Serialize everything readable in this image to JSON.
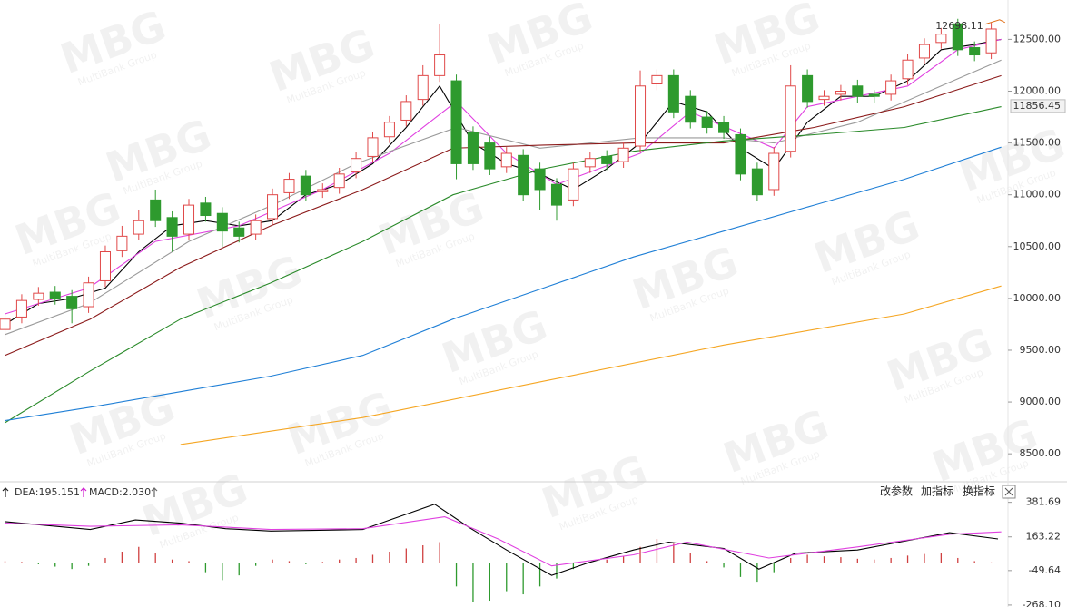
{
  "chart_data": [
    {
      "type": "candlestick",
      "x": [
        0,
        1,
        2,
        3,
        4,
        5,
        6,
        7,
        8,
        9,
        10,
        11,
        12,
        13,
        14,
        15,
        16,
        17,
        18,
        19,
        20,
        21,
        22,
        23,
        24,
        25,
        26,
        27,
        28,
        29,
        30,
        31,
        32,
        33,
        34,
        35,
        36,
        37,
        38,
        39,
        40,
        41,
        42,
        43,
        44,
        45,
        46,
        47,
        48,
        49,
        50,
        51,
        52,
        53,
        54,
        55,
        56,
        57,
        58,
        59
      ],
      "open": [
        9700,
        9820,
        9990,
        10060,
        10020,
        9920,
        10170,
        10460,
        10620,
        10950,
        10780,
        10620,
        10920,
        10820,
        10680,
        10620,
        10770,
        11020,
        11180,
        11030,
        11070,
        11220,
        11370,
        11560,
        11720,
        11920,
        12150,
        12100,
        11600,
        11500,
        11270,
        11380,
        11250,
        11100,
        10950,
        11270,
        11370,
        11320,
        11470,
        12070,
        12150,
        11950,
        11750,
        11700,
        11580,
        11250,
        11050,
        11420,
        12150,
        11920,
        11970,
        12050,
        11970,
        11970,
        12120,
        12320,
        12470,
        12650,
        12420,
        12370
      ],
      "high": [
        9860,
        10040,
        10110,
        10120,
        10080,
        10210,
        10510,
        10700,
        10850,
        11050,
        10840,
        10960,
        10980,
        10880,
        10740,
        10810,
        11060,
        11210,
        11240,
        11110,
        11260,
        11410,
        11610,
        11760,
        11960,
        12250,
        12650,
        12160,
        11660,
        11560,
        11460,
        11440,
        11310,
        11160,
        11310,
        11410,
        11430,
        11510,
        12200,
        12210,
        12210,
        12010,
        11810,
        11760,
        11640,
        11310,
        11460,
        12250,
        12210,
        12010,
        12060,
        12110,
        12010,
        12160,
        12360,
        12510,
        12610,
        12698.11,
        12480,
        12660
      ],
      "low": [
        9600,
        9760,
        9930,
        9940,
        9760,
        9860,
        10110,
        10400,
        10560,
        10690,
        10450,
        10560,
        10740,
        10500,
        10540,
        10560,
        10710,
        10960,
        10940,
        10970,
        11010,
        11160,
        11310,
        11500,
        11660,
        11860,
        12090,
        11150,
        11240,
        11190,
        11210,
        10940,
        10850,
        10750,
        10890,
        11210,
        11240,
        11260,
        11410,
        12010,
        11740,
        11640,
        11590,
        11540,
        11140,
        10940,
        10990,
        11360,
        11840,
        11860,
        11910,
        11890,
        11890,
        11910,
        12060,
        12260,
        12410,
        12340,
        12290,
        12310
      ],
      "close": [
        9800,
        9980,
        10050,
        10000,
        9900,
        10150,
        10450,
        10600,
        10750,
        10750,
        10600,
        10900,
        10800,
        10650,
        10600,
        10750,
        11000,
        11150,
        11000,
        11050,
        11200,
        11350,
        11550,
        11700,
        11900,
        12150,
        12350,
        11300,
        11300,
        11250,
        11400,
        11000,
        11050,
        10900,
        11250,
        11350,
        11300,
        11450,
        12050,
        12150,
        11800,
        11700,
        11650,
        11600,
        11200,
        11000,
        11400,
        12050,
        11900,
        11950,
        12000,
        11950,
        11950,
        12100,
        12300,
        12450,
        12550,
        12400,
        12350,
        12600
      ],
      "up_color": "#e04848",
      "down_color": "#2e9a2e",
      "series": [
        {
          "color": "#000000",
          "x": [
            0,
            2,
            4,
            6,
            8,
            10,
            12,
            14,
            16,
            18,
            20,
            22,
            24,
            26,
            28,
            30,
            32,
            34,
            36,
            38,
            40,
            42,
            44,
            46,
            48,
            50,
            52,
            54,
            56,
            58,
            59.6
          ],
          "values": [
            9750,
            9950,
            10000,
            10100,
            10450,
            10700,
            10750,
            10700,
            10750,
            11000,
            11100,
            11300,
            11650,
            12050,
            11500,
            11300,
            11200,
            11050,
            11250,
            11500,
            11900,
            11800,
            11450,
            11250,
            11700,
            11950,
            11950,
            12100,
            12400,
            12450,
            12500
          ]
        },
        {
          "color": "#e040e0",
          "x": [
            0,
            5,
            9,
            14,
            19,
            23,
            27,
            30,
            33,
            38,
            41,
            46,
            48,
            54,
            57,
            59.6
          ],
          "values": [
            9850,
            10100,
            10550,
            10700,
            11050,
            11400,
            11900,
            11400,
            11100,
            11400,
            11800,
            11450,
            11850,
            12050,
            12400,
            12500
          ]
        },
        {
          "color": "#9a9a9a",
          "x": [
            0,
            5,
            11,
            16,
            21,
            27,
            32,
            38,
            43,
            46,
            51,
            56,
            59.6
          ],
          "values": [
            9650,
            9950,
            10550,
            10900,
            11300,
            11650,
            11450,
            11550,
            11550,
            11500,
            11700,
            12050,
            12300
          ]
        },
        {
          "color": "#8b1a1a",
          "x": [
            0,
            5.1,
            10.5,
            15.9,
            21.4,
            26.8,
            32.2,
            37.6,
            43,
            48.4,
            53.8,
            59.6
          ],
          "values": [
            9450,
            9800,
            10300,
            10700,
            11050,
            11450,
            11480,
            11500,
            11500,
            11650,
            11850,
            12150
          ]
        },
        {
          "color": "#2a8a2a",
          "x": [
            0,
            5.1,
            10.5,
            15.9,
            21.4,
            26.8,
            32.2,
            37.6,
            43,
            48.4,
            53.8,
            59.6
          ],
          "values": [
            8800,
            9300,
            9800,
            10150,
            10550,
            11000,
            11250,
            11420,
            11520,
            11580,
            11650,
            11850
          ]
        },
        {
          "color": "#1f7fd6",
          "x": [
            0,
            5.1,
            10.5,
            15.9,
            21.4,
            26.8,
            32.2,
            37.6,
            43,
            48.4,
            53.8,
            59.6
          ],
          "values": [
            8820,
            8950,
            9100,
            9250,
            9450,
            9800,
            10100,
            10400,
            10650,
            10900,
            11150,
            11460
          ]
        },
        {
          "color": "#f5a623",
          "x": [
            10.5,
            21.4,
            32.2,
            43,
            53.8,
            59.6
          ],
          "values": [
            8590,
            8850,
            9200,
            9550,
            9850,
            10120
          ]
        }
      ],
      "xlim": [
        -0.3,
        60
      ],
      "ylim": [
        8230,
        12880
      ],
      "yticks": [
        {
          "value": 8500,
          "label": "8500.00"
        },
        {
          "value": 9000,
          "label": "9000.00"
        },
        {
          "value": 9500,
          "label": "9500.00"
        },
        {
          "value": 10000,
          "label": "10000.00"
        },
        {
          "value": 10500,
          "label": "10500.00"
        },
        {
          "value": 11000,
          "label": "11000.00"
        },
        {
          "value": 11500,
          "label": "11500.00"
        },
        {
          "value": 12000,
          "label": "12000.00"
        },
        {
          "value": 12500,
          "label": "12500.00"
        }
      ],
      "annotations": [
        {
          "value": 12698.11,
          "label": "12698.11",
          "x": 57
        }
      ],
      "price_label": 11856.45
    },
    {
      "type": "macd",
      "legend": [
        {
          "label": "DEA:195.151",
          "color": "#d020d0"
        },
        {
          "label": "MACD:2.030",
          "color": "#555555"
        }
      ],
      "x": [
        0,
        1,
        2,
        3,
        4,
        5,
        6,
        7,
        8,
        9,
        10,
        11,
        12,
        13,
        14,
        15,
        16,
        17,
        18,
        19,
        20,
        21,
        22,
        23,
        24,
        25,
        26,
        27,
        28,
        29,
        30,
        31,
        32,
        33,
        34,
        35,
        36,
        37,
        38,
        39,
        40,
        41,
        42,
        43,
        44,
        45,
        46,
        47,
        48,
        49,
        50,
        51,
        52,
        53,
        54,
        55,
        56,
        57,
        58,
        59
      ],
      "values": [
        10,
        5,
        -10,
        -25,
        -40,
        -20,
        30,
        70,
        100,
        60,
        20,
        10,
        -60,
        -110,
        -80,
        -20,
        20,
        10,
        -10,
        5,
        20,
        30,
        50,
        70,
        90,
        110,
        130,
        -150,
        -250,
        -240,
        -180,
        -200,
        -150,
        -100,
        -40,
        0,
        20,
        40,
        100,
        150,
        120,
        60,
        10,
        -30,
        -90,
        -120,
        -60,
        30,
        50,
        40,
        35,
        25,
        20,
        30,
        45,
        55,
        60,
        30,
        10,
        2.03
      ],
      "up_color": "#d04040",
      "down_color": "#2e9a2e",
      "series": [
        {
          "color": "#000000",
          "x": [
            0,
            5.1,
            7.8,
            10.5,
            13.2,
            15.9,
            21.4,
            25.7,
            27.8,
            30,
            32.7,
            34.9,
            37.6,
            39.7,
            43,
            45.1,
            47.3,
            51,
            56.5,
            59.4
          ],
          "values": [
            260,
            210,
            270,
            250,
            215,
            200,
            210,
            370,
            220,
            80,
            -80,
            0,
            80,
            130,
            90,
            -40,
            60,
            80,
            190,
            150
          ]
        },
        {
          "color": "#e040e0",
          "x": [
            0,
            5.1,
            10.5,
            15.9,
            21.4,
            26.3,
            29.5,
            32.7,
            37.6,
            40.8,
            45.7,
            51,
            56.5,
            59.6
          ],
          "values": [
            250,
            230,
            240,
            210,
            215,
            290,
            150,
            -20,
            50,
            130,
            30,
            100,
            180,
            195.151
          ]
        }
      ],
      "xlim": [
        -0.3,
        60
      ],
      "ylim": [
        -280,
        460
      ],
      "yticks": [
        381.69,
        163.22,
        -49.64,
        {
          "value": -268.1,
          "label": "-268.10"
        }
      ]
    }
  ],
  "toolbar": {
    "buttons": [
      "改参数",
      "加指标",
      "换指标"
    ]
  },
  "watermark": {
    "title": "MBG",
    "subtitle": "MultiBank Group"
  }
}
